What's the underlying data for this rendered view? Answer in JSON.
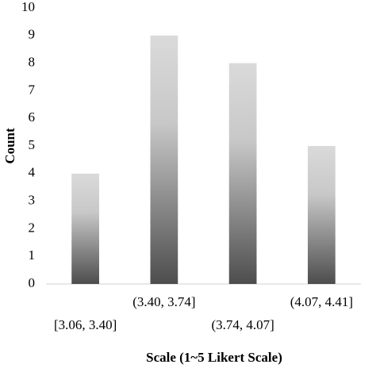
{
  "chart_data": {
    "type": "bar",
    "categories": [
      "[3.06, 3.40]",
      "(3.40, 3.74]",
      "(3.74, 4.07]",
      "(4.07, 4.41]"
    ],
    "values": [
      4,
      9,
      8,
      5
    ],
    "gradient": [
      "#dadada",
      "#c8c8c8",
      "#4d4d4d"
    ],
    "ylim": [
      0,
      10
    ],
    "yticks": [
      0,
      1,
      2,
      3,
      4,
      5,
      6,
      7,
      8,
      9,
      10
    ],
    "xlabel": "Scale (1~5 Likert Scale)",
    "ylabel": "Count",
    "grid": false
  }
}
